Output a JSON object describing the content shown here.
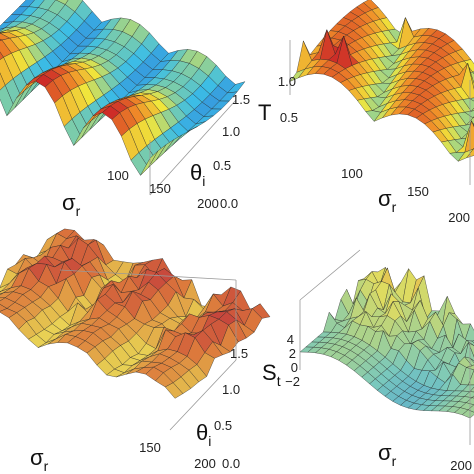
{
  "panels": [
    {
      "x_axis": {
        "symbol": "σ",
        "sub": "r",
        "ticks": [
          "100",
          "150",
          "200"
        ]
      },
      "y_axis": {
        "symbol": "θ",
        "sub": "i",
        "ticks": [
          "0.0",
          "0.5",
          "1.0",
          "1.5"
        ]
      }
    },
    {
      "x_axis": {
        "symbol": "σ",
        "sub": "r",
        "ticks": [
          "100",
          "150",
          "200"
        ]
      },
      "z_axis": {
        "symbol": "T",
        "ticks": [
          "1.0",
          "0.5"
        ]
      }
    },
    {
      "x_axis": {
        "symbol": "σ",
        "sub": "r",
        "ticks": [
          "150",
          "200"
        ]
      },
      "y_axis": {
        "symbol": "θ",
        "sub": "i",
        "ticks": [
          "0.0",
          "0.5",
          "1.0",
          "1.5"
        ]
      }
    },
    {
      "x_axis": {
        "symbol": "σ",
        "sub": "r",
        "ticks": [
          "200"
        ]
      },
      "z_axis": {
        "symbol": "S",
        "sub": "t",
        "ticks": [
          "4",
          "2",
          "0",
          "−2"
        ]
      }
    }
  ]
}
